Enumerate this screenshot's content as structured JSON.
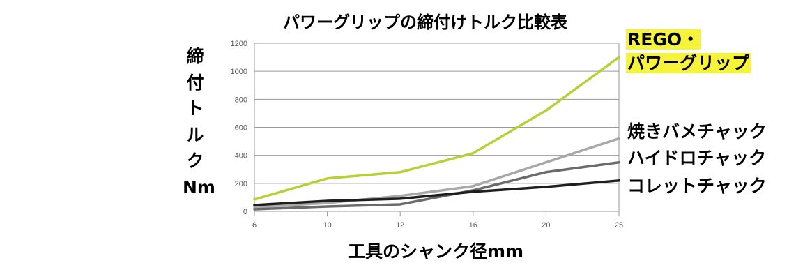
{
  "colors": {
    "rego_powergrip": "#b6d135",
    "shrink_fit": "#a8a8a8",
    "hydraulic": "#6b6b6b",
    "collet": "#1e1e1e",
    "highlight": "#f6f43a"
  },
  "chart_data": {
    "type": "line",
    "title": "パワーグリップの締付けトルク比較表",
    "xlabel": "工具のシャンク径mm",
    "ylabel": "締付トルクNm",
    "ylabel_chars": [
      "締",
      "付",
      "ト",
      "ル",
      "ク"
    ],
    "ylabel_unit": "Nm",
    "x": [
      "6",
      "10",
      "12",
      "16",
      "20",
      "25"
    ],
    "ylim": [
      0,
      1200
    ],
    "yticks": [
      "0",
      "200",
      "400",
      "600",
      "800",
      "1000",
      "1200"
    ],
    "grid": true,
    "series": [
      {
        "name_line1": "REGO・",
        "name_line2": "パワーグリップ",
        "color": "#b6d135",
        "values": [
          85,
          235,
          280,
          415,
          720,
          1100
        ]
      },
      {
        "name": "焼きバメチャック",
        "color": "#a8a8a8",
        "values": [
          30,
          60,
          110,
          180,
          350,
          520
        ]
      },
      {
        "name": "ハイドロチャック",
        "color": "#6b6b6b",
        "values": [
          15,
          35,
          50,
          150,
          280,
          350
        ]
      },
      {
        "name": "コレットチャック",
        "color": "#1e1e1e",
        "values": [
          45,
          75,
          90,
          140,
          175,
          220
        ]
      }
    ]
  }
}
